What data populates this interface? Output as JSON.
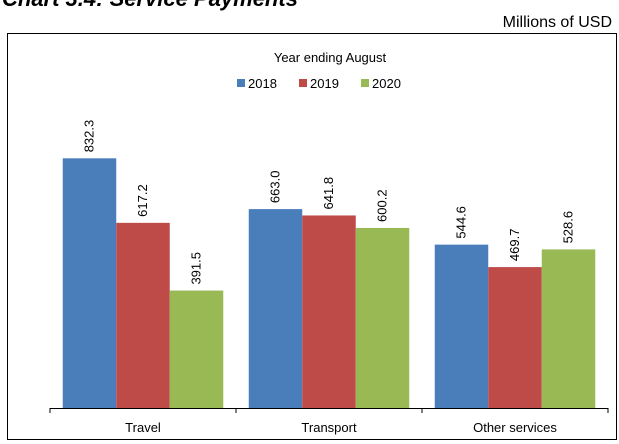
{
  "chart_data": {
    "type": "bar",
    "title": "Chart 3.4: Service Payments",
    "unit_label": "Millions of USD",
    "legend_title": "Year ending August",
    "categories": [
      "Travel",
      "Transport",
      "Other services"
    ],
    "series": [
      {
        "name": "2018",
        "color": "#4a7ebb",
        "values": [
          832.3,
          663.0,
          544.6
        ],
        "value_labels": [
          "832.3",
          "663.0",
          "544.6"
        ]
      },
      {
        "name": "2019",
        "color": "#be4b48",
        "values": [
          617.2,
          641.8,
          469.7
        ],
        "value_labels": [
          "617.2",
          "641.8",
          "469.7"
        ]
      },
      {
        "name": "2020",
        "color": "#98b954",
        "values": [
          391.5,
          600.2,
          528.6
        ],
        "value_labels": [
          "391.5",
          "600.2",
          "528.6"
        ]
      }
    ],
    "ylim": [
      0,
      1000
    ]
  }
}
